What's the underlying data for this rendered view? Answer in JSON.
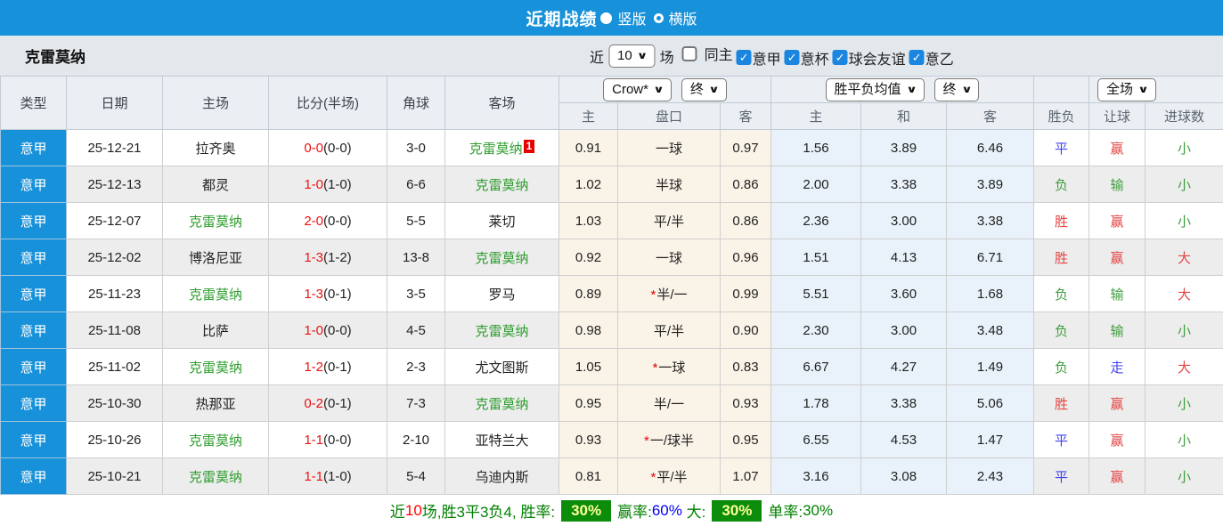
{
  "colors": {
    "accent": "#1791d9",
    "team": "#222222",
    "self_team": "#2e9d2e",
    "score_ft": "#ee1111",
    "score_ht": "#222222",
    "win_red": "#e64444",
    "draw_blue": "#4343ee",
    "lose_green": "#3e9e3e",
    "summary_green": "#008000",
    "summary_red": "#ff0000",
    "summary_blue": "#0000ee",
    "badge_bg": "#0b8c0b",
    "badge_text": "#ffff99"
  },
  "icons": {
    "check": "✓",
    "chevron": "∨"
  },
  "titlebar": {
    "title": "近期战绩",
    "radios": [
      {
        "label": "竖版",
        "selected": true
      },
      {
        "label": "横版",
        "selected": false
      }
    ]
  },
  "filterbar": {
    "team": "克雷莫纳",
    "near_label": "近",
    "count_value": "10",
    "matches_label": "场",
    "checkboxes": [
      {
        "label": "同主",
        "checked": false
      },
      {
        "label": "意甲",
        "checked": true
      },
      {
        "label": "意杯",
        "checked": true
      },
      {
        "label": "球会友谊",
        "checked": true
      },
      {
        "label": "意乙",
        "checked": true
      }
    ]
  },
  "table": {
    "dropdowns": {
      "company": "Crow*",
      "company_time": "终",
      "europe": "胜平负均值",
      "europe_time": "终",
      "scope": "全场"
    },
    "headers": {
      "type": "类型",
      "date": "日期",
      "home": "主场",
      "score": "比分(半场)",
      "corners": "角球",
      "away": "客场",
      "ah_home": "主",
      "ah_line": "盘口",
      "ah_away": "客",
      "eu_home": "主",
      "eu_draw": "和",
      "eu_away": "客",
      "result": "胜负",
      "handicap": "让球",
      "goals": "进球数"
    },
    "rows": [
      {
        "league": "意甲",
        "date": "25-12-21",
        "home": {
          "name": "拉齐奥",
          "is_self": false
        },
        "score": {
          "ft": "0-0",
          "ht": "(0-0)"
        },
        "corners": "3-0",
        "away": {
          "name": "克雷莫纳",
          "is_self": true,
          "badge": "1"
        },
        "asian": {
          "home": "0.91",
          "star": false,
          "line": "一球",
          "away": "0.97"
        },
        "europe": {
          "home": "1.56",
          "draw": "3.89",
          "away": "6.46"
        },
        "outcome": {
          "text": "平",
          "color": "#4343ee"
        },
        "handicap_result": {
          "text": "赢",
          "color": "#e64444"
        },
        "goals": {
          "text": "小",
          "color": "#3e9e3e"
        }
      },
      {
        "league": "意甲",
        "date": "25-12-13",
        "home": {
          "name": "都灵",
          "is_self": false
        },
        "score": {
          "ft": "1-0",
          "ht": "(1-0)"
        },
        "corners": "6-6",
        "away": {
          "name": "克雷莫纳",
          "is_self": true,
          "badge": ""
        },
        "asian": {
          "home": "1.02",
          "star": false,
          "line": "半球",
          "away": "0.86"
        },
        "europe": {
          "home": "2.00",
          "draw": "3.38",
          "away": "3.89"
        },
        "outcome": {
          "text": "负",
          "color": "#3e9e3e"
        },
        "handicap_result": {
          "text": "输",
          "color": "#3e9e3e"
        },
        "goals": {
          "text": "小",
          "color": "#3e9e3e"
        }
      },
      {
        "league": "意甲",
        "date": "25-12-07",
        "home": {
          "name": "克雷莫纳",
          "is_self": true
        },
        "score": {
          "ft": "2-0",
          "ht": "(0-0)"
        },
        "corners": "5-5",
        "away": {
          "name": "莱切",
          "is_self": false,
          "badge": ""
        },
        "asian": {
          "home": "1.03",
          "star": false,
          "line": "平/半",
          "away": "0.86"
        },
        "europe": {
          "home": "2.36",
          "draw": "3.00",
          "away": "3.38"
        },
        "outcome": {
          "text": "胜",
          "color": "#e64444"
        },
        "handicap_result": {
          "text": "赢",
          "color": "#e64444"
        },
        "goals": {
          "text": "小",
          "color": "#3e9e3e"
        }
      },
      {
        "league": "意甲",
        "date": "25-12-02",
        "home": {
          "name": "博洛尼亚",
          "is_self": false
        },
        "score": {
          "ft": "1-3",
          "ht": "(1-2)"
        },
        "corners": "13-8",
        "away": {
          "name": "克雷莫纳",
          "is_self": true,
          "badge": ""
        },
        "asian": {
          "home": "0.92",
          "star": false,
          "line": "一球",
          "away": "0.96"
        },
        "europe": {
          "home": "1.51",
          "draw": "4.13",
          "away": "6.71"
        },
        "outcome": {
          "text": "胜",
          "color": "#e64444"
        },
        "handicap_result": {
          "text": "赢",
          "color": "#e64444"
        },
        "goals": {
          "text": "大",
          "color": "#e64444"
        }
      },
      {
        "league": "意甲",
        "date": "25-11-23",
        "home": {
          "name": "克雷莫纳",
          "is_self": true
        },
        "score": {
          "ft": "1-3",
          "ht": "(0-1)"
        },
        "corners": "3-5",
        "away": {
          "name": "罗马",
          "is_self": false,
          "badge": ""
        },
        "asian": {
          "home": "0.89",
          "star": true,
          "line": "半/一",
          "away": "0.99"
        },
        "europe": {
          "home": "5.51",
          "draw": "3.60",
          "away": "1.68"
        },
        "outcome": {
          "text": "负",
          "color": "#3e9e3e"
        },
        "handicap_result": {
          "text": "输",
          "color": "#3e9e3e"
        },
        "goals": {
          "text": "大",
          "color": "#e64444"
        }
      },
      {
        "league": "意甲",
        "date": "25-11-08",
        "home": {
          "name": "比萨",
          "is_self": false
        },
        "score": {
          "ft": "1-0",
          "ht": "(0-0)"
        },
        "corners": "4-5",
        "away": {
          "name": "克雷莫纳",
          "is_self": true,
          "badge": ""
        },
        "asian": {
          "home": "0.98",
          "star": false,
          "line": "平/半",
          "away": "0.90"
        },
        "europe": {
          "home": "2.30",
          "draw": "3.00",
          "away": "3.48"
        },
        "outcome": {
          "text": "负",
          "color": "#3e9e3e"
        },
        "handicap_result": {
          "text": "输",
          "color": "#3e9e3e"
        },
        "goals": {
          "text": "小",
          "color": "#3e9e3e"
        }
      },
      {
        "league": "意甲",
        "date": "25-11-02",
        "home": {
          "name": "克雷莫纳",
          "is_self": true
        },
        "score": {
          "ft": "1-2",
          "ht": "(0-1)"
        },
        "corners": "2-3",
        "away": {
          "name": "尤文图斯",
          "is_self": false,
          "badge": ""
        },
        "asian": {
          "home": "1.05",
          "star": true,
          "line": "一球",
          "away": "0.83"
        },
        "europe": {
          "home": "6.67",
          "draw": "4.27",
          "away": "1.49"
        },
        "outcome": {
          "text": "负",
          "color": "#3e9e3e"
        },
        "handicap_result": {
          "text": "走",
          "color": "#4343ee"
        },
        "goals": {
          "text": "大",
          "color": "#e64444"
        }
      },
      {
        "league": "意甲",
        "date": "25-10-30",
        "home": {
          "name": "热那亚",
          "is_self": false
        },
        "score": {
          "ft": "0-2",
          "ht": "(0-1)"
        },
        "corners": "7-3",
        "away": {
          "name": "克雷莫纳",
          "is_self": true,
          "badge": ""
        },
        "asian": {
          "home": "0.95",
          "star": false,
          "line": "半/一",
          "away": "0.93"
        },
        "europe": {
          "home": "1.78",
          "draw": "3.38",
          "away": "5.06"
        },
        "outcome": {
          "text": "胜",
          "color": "#e64444"
        },
        "handicap_result": {
          "text": "赢",
          "color": "#e64444"
        },
        "goals": {
          "text": "小",
          "color": "#3e9e3e"
        }
      },
      {
        "league": "意甲",
        "date": "25-10-26",
        "home": {
          "name": "克雷莫纳",
          "is_self": true
        },
        "score": {
          "ft": "1-1",
          "ht": "(0-0)"
        },
        "corners": "2-10",
        "away": {
          "name": "亚特兰大",
          "is_self": false,
          "badge": ""
        },
        "asian": {
          "home": "0.93",
          "star": true,
          "line": "一/球半",
          "away": "0.95"
        },
        "europe": {
          "home": "6.55",
          "draw": "4.53",
          "away": "1.47"
        },
        "outcome": {
          "text": "平",
          "color": "#4343ee"
        },
        "handicap_result": {
          "text": "赢",
          "color": "#e64444"
        },
        "goals": {
          "text": "小",
          "color": "#3e9e3e"
        }
      },
      {
        "league": "意甲",
        "date": "25-10-21",
        "home": {
          "name": "克雷莫纳",
          "is_self": true
        },
        "score": {
          "ft": "1-1",
          "ht": "(1-0)"
        },
        "corners": "5-4",
        "away": {
          "name": "乌迪内斯",
          "is_self": false,
          "badge": ""
        },
        "asian": {
          "home": "0.81",
          "star": true,
          "line": "平/半",
          "away": "1.07"
        },
        "europe": {
          "home": "3.16",
          "draw": "3.08",
          "away": "2.43"
        },
        "outcome": {
          "text": "平",
          "color": "#4343ee"
        },
        "handicap_result": {
          "text": "赢",
          "color": "#e64444"
        },
        "goals": {
          "text": "小",
          "color": "#3e9e3e"
        }
      }
    ]
  },
  "summary": {
    "parts": [
      {
        "text": "近",
        "color": "#008000"
      },
      {
        "text": "10",
        "color": "#ff0000"
      },
      {
        "text": "场,胜3平3负4, 胜率:",
        "color": "#008000"
      },
      {
        "text": "30%",
        "badge": true
      },
      {
        "text": "赢率:",
        "color": "#008000"
      },
      {
        "text": "60%",
        "color": "#0000ee"
      },
      {
        "text": " 大:",
        "color": "#008000"
      },
      {
        "text": "30%",
        "badge": true
      },
      {
        "text": "单率:",
        "color": "#008000"
      },
      {
        "text": "30%",
        "color": "#008000"
      }
    ]
  }
}
